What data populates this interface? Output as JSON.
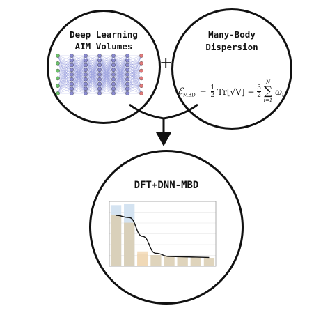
{
  "left_node": {
    "title_line1": "Deep Learning",
    "title_line2": "AIM Volumes"
  },
  "operator": "+",
  "right_node": {
    "title_line1": "Many-Body",
    "title_line2": "Dispersion",
    "equation": {
      "lhs": "ℰ",
      "lhs_sub": "MBD",
      "eq": "=",
      "frac1_num": "1",
      "frac1_den": "2",
      "trace": "Tr[√V] −",
      "frac2_num": "3",
      "frac2_den": "2",
      "sum_top": "N",
      "sum_bottom": "i=1",
      "term": "ω̄",
      "term_sub": "i"
    }
  },
  "bottom_node": {
    "title": "DFT+DNN-MBD"
  },
  "colors": {
    "ink": "#111111",
    "bar_blue": "#cfe0f0",
    "bar_tan": "#d9cdb0",
    "bar_orange": "#f3d9b6",
    "input_node": "#6cc06c",
    "output_node": "#e07a7a",
    "hidden_node": "#8a8ad0"
  },
  "chart_data": {
    "type": "bar",
    "categories": [
      "",
      "",
      "",
      "",
      "",
      "",
      "",
      ""
    ],
    "series": [
      {
        "values": [
          66,
          67,
          0,
          0,
          0,
          0,
          0,
          0
        ]
      },
      {
        "values": [
          55,
          47,
          13,
          12,
          11,
          11,
          10,
          9
        ]
      },
      {
        "values": [
          0,
          0,
          16,
          0,
          0,
          0,
          0,
          0
        ]
      },
      {
        "values": [
          1.57,
          1.5,
          0.92,
          0.4,
          0.3,
          0.29,
          0.28,
          0.27
        ]
      }
    ],
    "ylim": [
      0,
      70
    ],
    "y2lim": [
      0,
      2.0
    ]
  }
}
